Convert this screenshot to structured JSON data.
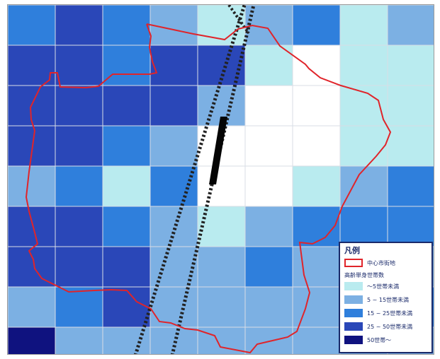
{
  "legend": {
    "title": "凡例",
    "boundary_label": "中心市街地",
    "boundary_color": "#e0242a",
    "subtitle": "高齢単身世帯数",
    "classes": [
      {
        "label": "～5世帯未満",
        "color": "#b9ebef"
      },
      {
        "label": "5 ~ 15世帯未満",
        "color": "#7cb0e3"
      },
      {
        "label": "15 ~ 25世帯未満",
        "color": "#2f7fdc"
      },
      {
        "label": "25 ~ 50世帯未満",
        "color": "#2a47b8"
      },
      {
        "label": "50世帯～",
        "color": "#0f127f"
      }
    ]
  },
  "colors": {
    "white_cell": "#ffffff",
    "rail_line": "#222222",
    "station": "#050505"
  },
  "grid": {
    "rows": [
      [
        2,
        3,
        2,
        1,
        0,
        1,
        2,
        0,
        1
      ],
      [
        3,
        3,
        2,
        3,
        3,
        0,
        -1,
        0,
        0
      ],
      [
        3,
        3,
        3,
        3,
        1,
        -1,
        -1,
        0,
        0
      ],
      [
        3,
        3,
        2,
        1,
        -1,
        -1,
        -1,
        0,
        0
      ],
      [
        1,
        2,
        0,
        2,
        -1,
        -1,
        0,
        1,
        2
      ],
      [
        3,
        3,
        2,
        1,
        0,
        1,
        2,
        2,
        2
      ],
      [
        3,
        3,
        3,
        1,
        1,
        2,
        1,
        1,
        1
      ],
      [
        1,
        2,
        3,
        1,
        1,
        1,
        1,
        2,
        2
      ],
      [
        4,
        1,
        1,
        1,
        1,
        1,
        1,
        1,
        1
      ]
    ]
  }
}
